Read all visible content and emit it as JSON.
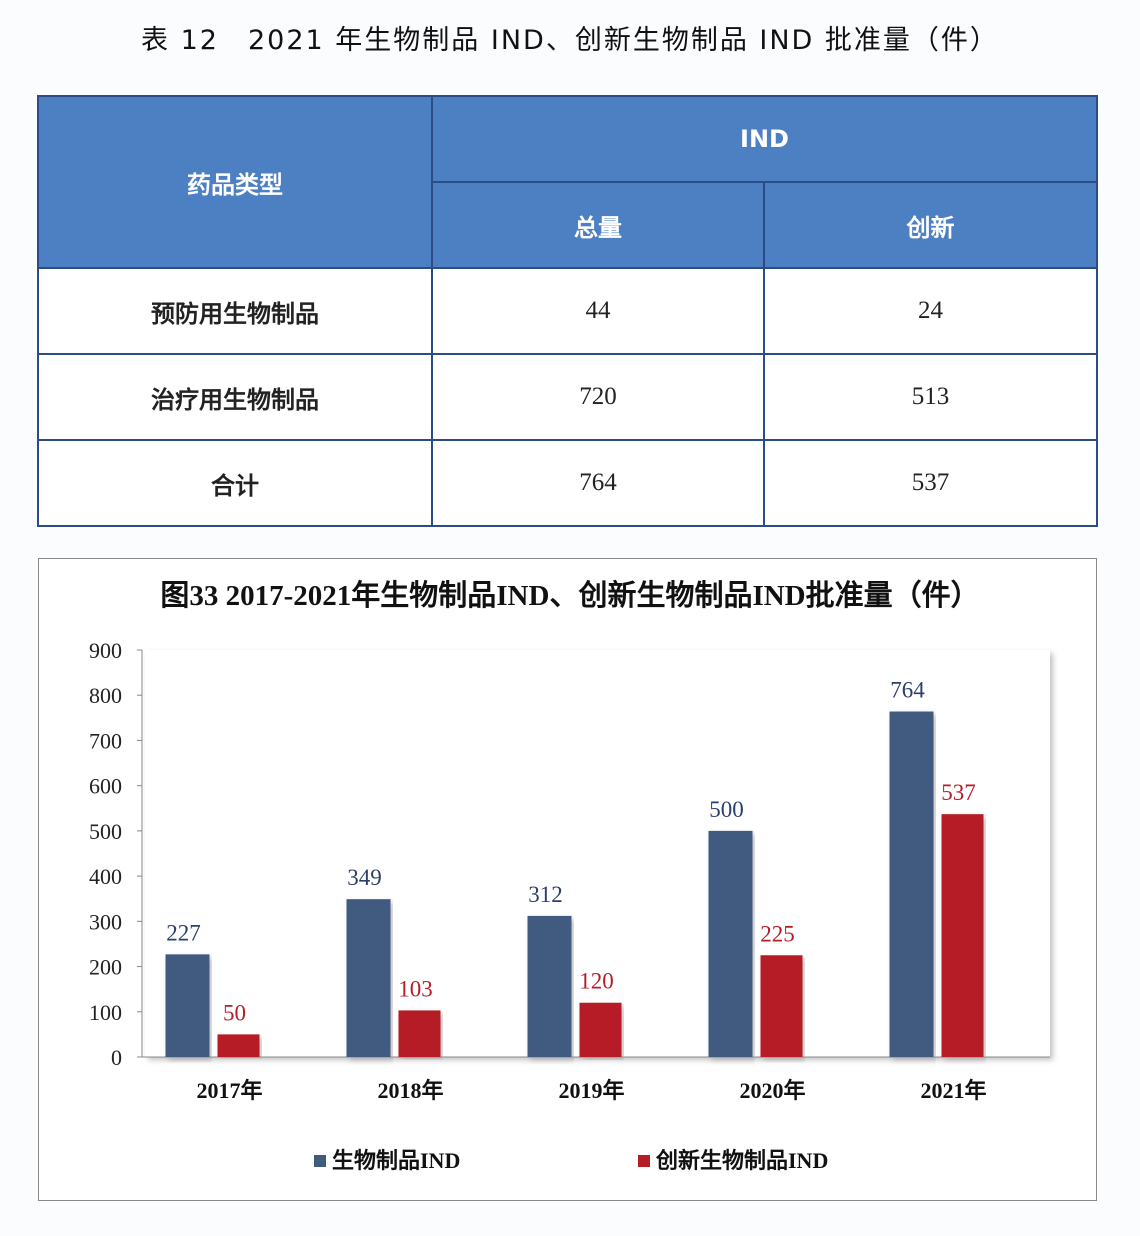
{
  "table": {
    "title": "表 12　2021 年生物制品 IND、创新生物制品 IND 批准量（件）",
    "header": {
      "type": "药品类型",
      "group": "IND",
      "total": "总量",
      "innovative": "创新"
    },
    "rows": [
      {
        "label": "预防用生物制品",
        "total": "44",
        "innovative": "24"
      },
      {
        "label": "治疗用生物制品",
        "total": "720",
        "innovative": "513"
      },
      {
        "label": "合计",
        "total": "764",
        "innovative": "537"
      }
    ]
  },
  "chart_data": {
    "type": "bar",
    "title": "图33 2017-2021年生物制品IND、创新生物制品IND批准量（件）",
    "categories": [
      "2017年",
      "2018年",
      "2019年",
      "2020年",
      "2021年"
    ],
    "series": [
      {
        "name": "生物制品IND",
        "color": "#405a80",
        "values": [
          227,
          349,
          312,
          500,
          764
        ]
      },
      {
        "name": "创新生物制品IND",
        "color": "#b51d27",
        "values": [
          50,
          103,
          120,
          225,
          537
        ]
      }
    ],
    "ylim": [
      0,
      900
    ],
    "yticks": [
      0,
      100,
      200,
      300,
      400,
      500,
      600,
      700,
      800,
      900
    ],
    "xlabel": "",
    "ylabel": "",
    "legend": "bottom"
  }
}
